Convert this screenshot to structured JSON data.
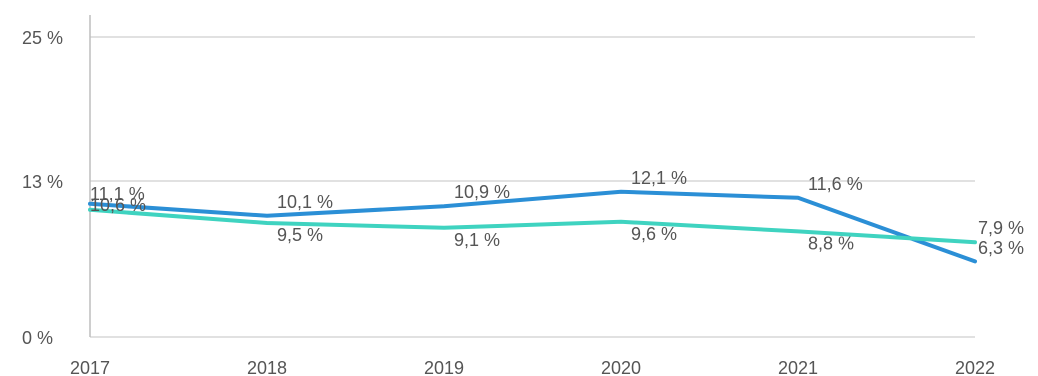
{
  "chart_data": {
    "type": "line",
    "categories": [
      "2017",
      "2018",
      "2019",
      "2020",
      "2021",
      "2022"
    ],
    "ytick_labels": [
      "0 %",
      "13 %",
      "25 %"
    ],
    "yticks": [
      0,
      13,
      25
    ],
    "ylim": [
      0,
      25
    ],
    "grid": true,
    "series": [
      {
        "color": "#2b8fd6",
        "values": [
          11.1,
          10.1,
          10.9,
          12.1,
          11.6,
          6.3
        ],
        "labels": [
          "11,1 %",
          "10,1 %",
          "10,9 %",
          "12,1 %",
          "11,6 %",
          "6,3 %"
        ]
      },
      {
        "color": "#3fd3c0",
        "values": [
          10.6,
          9.5,
          9.1,
          9.6,
          8.8,
          7.9
        ],
        "labels": [
          "10,6 %",
          "9,5 %",
          "9,1 %",
          "9,6 %",
          "8,8 %",
          "7,9 %"
        ]
      }
    ]
  }
}
